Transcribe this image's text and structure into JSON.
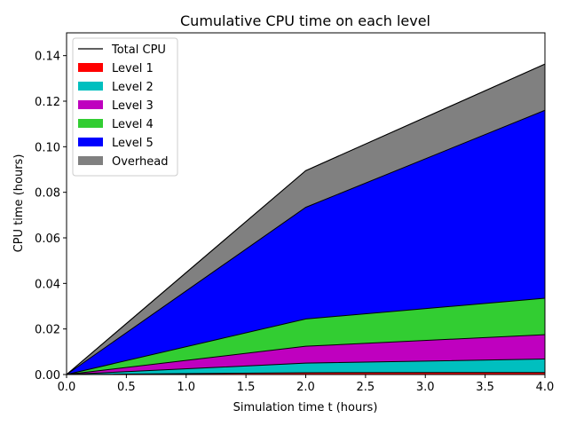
{
  "chart_data": {
    "type": "area",
    "title": "Cumulative CPU time on each level",
    "xlabel": "Simulation time t (hours)",
    "ylabel": "CPU time (hours)",
    "xlim": [
      0.0,
      4.0
    ],
    "ylim": [
      0.0,
      0.15
    ],
    "x_ticks": [
      "0.0",
      "0.5",
      "1.0",
      "1.5",
      "2.0",
      "2.5",
      "3.0",
      "3.5",
      "4.0"
    ],
    "y_ticks": [
      "0.00",
      "0.02",
      "0.04",
      "0.06",
      "0.08",
      "0.10",
      "0.12",
      "0.14"
    ],
    "x": [
      0.0,
      2.0,
      4.0
    ],
    "stacked": true,
    "legend_position": "upper-left",
    "series": [
      {
        "name": "Level 1",
        "color": "#ff0000",
        "values": [
          0.0,
          0.0008,
          0.0009
        ]
      },
      {
        "name": "Level 2",
        "color": "#00bfbf",
        "values": [
          0.0,
          0.0042,
          0.0059
        ]
      },
      {
        "name": "Level 3",
        "color": "#bf00bf",
        "values": [
          0.0,
          0.0074,
          0.0107
        ]
      },
      {
        "name": "Level 4",
        "color": "#32cd32",
        "values": [
          0.0,
          0.012,
          0.016
        ]
      },
      {
        "name": "Level 5",
        "color": "#0000ff",
        "values": [
          0.0,
          0.049,
          0.0825
        ]
      },
      {
        "name": "Overhead",
        "color": "#808080",
        "values": [
          0.0,
          0.0161,
          0.0203
        ]
      }
    ],
    "total_series": {
      "name": "Total CPU",
      "color": "#000000",
      "values": [
        0.0,
        0.0895,
        0.1363
      ]
    }
  }
}
